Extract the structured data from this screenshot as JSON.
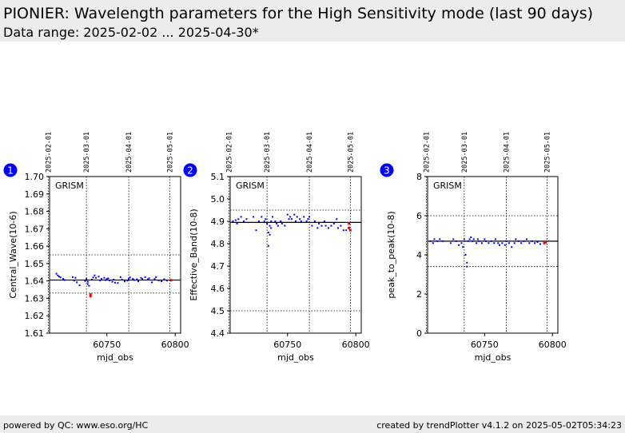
{
  "header": {
    "title": "PIONIER: Wavelength parameters for the High Sensitivity mode (last 90 days)",
    "subtitle": "Data range: 2025-02-02 ... 2025-04-30*"
  },
  "footer": {
    "left": "powered by QC: www.eso.org/HC",
    "right": "created by trendPlotter v4.1.2 on 2025-05-02T05:34:23"
  },
  "colors": {
    "points": "#0000ff",
    "latest": "#ff0000",
    "badge": "#0000ff",
    "header_bg": "#ececec"
  },
  "chart_data": [
    {
      "type": "scatter",
      "badge": "1",
      "label": "GRISM",
      "xlabel": "mjd_obs",
      "ylabel": "Central_Wave(10-6)",
      "xlim": [
        60708,
        60804
      ],
      "ylim": [
        1.61,
        1.7
      ],
      "yticks": [
        "1.61",
        "1.62",
        "1.63",
        "1.64",
        "1.65",
        "1.66",
        "1.67",
        "1.68",
        "1.69",
        "1.70"
      ],
      "xticks": [
        {
          "v": 60750,
          "label": "60750"
        },
        {
          "v": 60800,
          "label": "60800"
        }
      ],
      "date_ticks": [
        {
          "v": 60707,
          "label": "2025-02-01"
        },
        {
          "v": 60735,
          "label": "2025-03-01"
        },
        {
          "v": 60766,
          "label": "2025-04-01"
        },
        {
          "v": 60796,
          "label": "2025-05-01"
        }
      ],
      "hlines": {
        "mean": 1.6405,
        "upper": 1.655,
        "lower": 1.633
      },
      "points": [
        [
          60713,
          1.6442
        ],
        [
          60714,
          1.6432
        ],
        [
          60715,
          1.6425
        ],
        [
          60716,
          1.642
        ],
        [
          60718,
          1.6412
        ],
        [
          60719,
          1.6405
        ],
        [
          60725,
          1.6422
        ],
        [
          60726,
          1.6402
        ],
        [
          60727,
          1.6418
        ],
        [
          60728,
          1.6392
        ],
        [
          60730,
          1.6375
        ],
        [
          60734,
          1.64
        ],
        [
          60735,
          1.6412
        ],
        [
          60736,
          1.6395
        ],
        [
          60736,
          1.6382
        ],
        [
          60737,
          1.6372
        ],
        [
          60739,
          1.6408
        ],
        [
          60740,
          1.642
        ],
        [
          60741,
          1.6432
        ],
        [
          60742,
          1.6418
        ],
        [
          60744,
          1.6425
        ],
        [
          60745,
          1.6402
        ],
        [
          60746,
          1.6412
        ],
        [
          60748,
          1.6418
        ],
        [
          60749,
          1.6405
        ],
        [
          60750,
          1.6412
        ],
        [
          60751,
          1.6415
        ],
        [
          60752,
          1.6402
        ],
        [
          60754,
          1.6395
        ],
        [
          60755,
          1.6408
        ],
        [
          60756,
          1.639
        ],
        [
          60758,
          1.6388
        ],
        [
          60760,
          1.6422
        ],
        [
          60761,
          1.6408
        ],
        [
          60763,
          1.6398
        ],
        [
          60765,
          1.6402
        ],
        [
          60766,
          1.6412
        ],
        [
          60767,
          1.642
        ],
        [
          60769,
          1.6412
        ],
        [
          60770,
          1.6405
        ],
        [
          60772,
          1.641
        ],
        [
          60773,
          1.6398
        ],
        [
          60775,
          1.6418
        ],
        [
          60776,
          1.6412
        ],
        [
          60778,
          1.6422
        ],
        [
          60780,
          1.641
        ],
        [
          60781,
          1.6415
        ],
        [
          60783,
          1.6392
        ],
        [
          60785,
          1.6412
        ],
        [
          60786,
          1.6422
        ],
        [
          60788,
          1.6402
        ],
        [
          60790,
          1.6398
        ],
        [
          60792,
          1.641
        ],
        [
          60794,
          1.6402
        ]
      ],
      "latest": [
        [
          60738,
          1.6322
        ],
        [
          60738,
          1.6312
        ],
        [
          60797,
          1.6404
        ]
      ]
    },
    {
      "type": "scatter",
      "badge": "2",
      "label": "GRISM",
      "xlabel": "mjd_obs",
      "ylabel": "Effective_Band(10-8)",
      "xlim": [
        60708,
        60804
      ],
      "ylim": [
        4.4,
        5.1
      ],
      "yticks": [
        "4.4",
        "4.5",
        "4.6",
        "4.7",
        "4.8",
        "4.9",
        "5.0",
        "5.1"
      ],
      "xticks": [
        {
          "v": 60750,
          "label": "60750"
        },
        {
          "v": 60800,
          "label": "60800"
        }
      ],
      "date_ticks": [
        {
          "v": 60707,
          "label": "2025-02-01"
        },
        {
          "v": 60735,
          "label": "2025-03-01"
        },
        {
          "v": 60766,
          "label": "2025-04-01"
        },
        {
          "v": 60796,
          "label": "2025-05-01"
        }
      ],
      "hlines": {
        "mean": 4.895,
        "upper": 4.95,
        "lower": 4.5
      },
      "points": [
        [
          60710,
          4.9
        ],
        [
          60712,
          4.905
        ],
        [
          60713,
          4.89
        ],
        [
          60714,
          4.91
        ],
        [
          60716,
          4.92
        ],
        [
          60718,
          4.9
        ],
        [
          60720,
          4.91
        ],
        [
          60725,
          4.92
        ],
        [
          60727,
          4.86
        ],
        [
          60729,
          4.9
        ],
        [
          60731,
          4.92
        ],
        [
          60733,
          4.9
        ],
        [
          60734,
          4.91
        ],
        [
          60735,
          4.89
        ],
        [
          60736,
          4.79
        ],
        [
          60736,
          4.85
        ],
        [
          60737,
          4.88
        ],
        [
          60737,
          4.84
        ],
        [
          60738,
          4.9
        ],
        [
          60738,
          4.87
        ],
        [
          60739,
          4.92
        ],
        [
          60741,
          4.9
        ],
        [
          60742,
          4.89
        ],
        [
          60743,
          4.88
        ],
        [
          60745,
          4.9
        ],
        [
          60746,
          4.89
        ],
        [
          60748,
          4.88
        ],
        [
          60750,
          4.93
        ],
        [
          60751,
          4.91
        ],
        [
          60752,
          4.92
        ],
        [
          60753,
          4.91
        ],
        [
          60755,
          4.93
        ],
        [
          60756,
          4.9
        ],
        [
          60757,
          4.92
        ],
        [
          60759,
          4.91
        ],
        [
          60760,
          4.9
        ],
        [
          60762,
          4.92
        ],
        [
          60764,
          4.9
        ],
        [
          60765,
          4.91
        ],
        [
          60766,
          4.92
        ],
        [
          60768,
          4.88
        ],
        [
          60770,
          4.9
        ],
        [
          60772,
          4.87
        ],
        [
          60773,
          4.89
        ],
        [
          60775,
          4.88
        ],
        [
          60777,
          4.9
        ],
        [
          60778,
          4.88
        ],
        [
          60780,
          4.87
        ],
        [
          60782,
          4.88
        ],
        [
          60784,
          4.89
        ],
        [
          60786,
          4.91
        ],
        [
          60787,
          4.87
        ],
        [
          60789,
          4.88
        ],
        [
          60791,
          4.86
        ],
        [
          60793,
          4.86
        ]
      ],
      "latest": [
        [
          60795,
          4.87
        ],
        [
          60795,
          4.89
        ],
        [
          60796,
          4.86
        ]
      ]
    },
    {
      "type": "scatter",
      "badge": "3",
      "label": "GRISM",
      "xlabel": "mjd_obs",
      "ylabel": "peak_to_peak(10-8)",
      "xlim": [
        60708,
        60804
      ],
      "ylim": [
        0,
        8
      ],
      "yticks": [
        "0",
        "2",
        "4",
        "6",
        "8"
      ],
      "xticks": [
        {
          "v": 60750,
          "label": "60750"
        },
        {
          "v": 60800,
          "label": "60800"
        }
      ],
      "date_ticks": [
        {
          "v": 60707,
          "label": "2025-02-01"
        },
        {
          "v": 60735,
          "label": "2025-03-01"
        },
        {
          "v": 60766,
          "label": "2025-04-01"
        },
        {
          "v": 60796,
          "label": "2025-05-01"
        }
      ],
      "hlines": {
        "mean": 4.7,
        "upper": 6.0,
        "lower": 3.4
      },
      "points": [
        [
          60710,
          4.7
        ],
        [
          60712,
          4.6
        ],
        [
          60713,
          4.8
        ],
        [
          60715,
          4.7
        ],
        [
          60717,
          4.8
        ],
        [
          60719,
          4.7
        ],
        [
          60725,
          4.6
        ],
        [
          60727,
          4.8
        ],
        [
          60729,
          4.7
        ],
        [
          60731,
          4.5
        ],
        [
          60733,
          4.6
        ],
        [
          60734,
          4.4
        ],
        [
          60735,
          4.8
        ],
        [
          60736,
          4.0
        ],
        [
          60737,
          3.6
        ],
        [
          60737,
          3.4
        ],
        [
          60738,
          4.7
        ],
        [
          60739,
          4.8
        ],
        [
          60740,
          4.9
        ],
        [
          60741,
          4.7
        ],
        [
          60742,
          4.8
        ],
        [
          60744,
          4.6
        ],
        [
          60745,
          4.8
        ],
        [
          60746,
          4.7
        ],
        [
          60748,
          4.6
        ],
        [
          60750,
          4.8
        ],
        [
          60751,
          4.7
        ],
        [
          60753,
          4.6
        ],
        [
          60755,
          4.7
        ],
        [
          60757,
          4.6
        ],
        [
          60758,
          4.8
        ],
        [
          60760,
          4.6
        ],
        [
          60761,
          4.5
        ],
        [
          60763,
          4.6
        ],
        [
          60765,
          4.5
        ],
        [
          60766,
          4.7
        ],
        [
          60768,
          4.6
        ],
        [
          60770,
          4.4
        ],
        [
          60772,
          4.6
        ],
        [
          60773,
          4.8
        ],
        [
          60775,
          4.7
        ],
        [
          60777,
          4.6
        ],
        [
          60779,
          4.7
        ],
        [
          60781,
          4.8
        ],
        [
          60783,
          4.6
        ],
        [
          60785,
          4.7
        ],
        [
          60787,
          4.6
        ],
        [
          60789,
          4.65
        ],
        [
          60791,
          4.55
        ]
      ],
      "latest": [
        [
          60794,
          4.6
        ],
        [
          60795,
          4.65
        ]
      ]
    }
  ]
}
